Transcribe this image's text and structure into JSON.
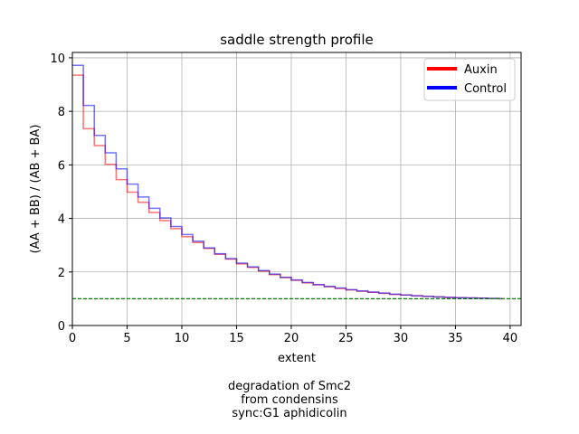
{
  "chart_data": {
    "type": "line",
    "drawstyle": "steps-post",
    "title": "saddle strength profile",
    "xlabel": "extent",
    "ylabel": "(AA + BB) / (AB + BA)",
    "xlim": [
      0,
      41
    ],
    "ylim": [
      0,
      10.2
    ],
    "xticks": [
      0,
      5,
      10,
      15,
      20,
      25,
      30,
      35,
      40
    ],
    "yticks": [
      0,
      2,
      4,
      6,
      8,
      10
    ],
    "grid": true,
    "legend_position": "top-right",
    "x": [
      0,
      1,
      2,
      3,
      4,
      5,
      6,
      7,
      8,
      9,
      10,
      11,
      12,
      13,
      14,
      15,
      16,
      17,
      18,
      19,
      20,
      21,
      22,
      23,
      24,
      25,
      26,
      27,
      28,
      29,
      30,
      31,
      32,
      33,
      34,
      35,
      36,
      37,
      38,
      39
    ],
    "series": [
      {
        "name": "Auxin",
        "color": "#ff0000",
        "values": [
          9.35,
          7.35,
          6.72,
          6.02,
          5.45,
          4.98,
          4.6,
          4.22,
          3.92,
          3.62,
          3.32,
          3.1,
          2.88,
          2.66,
          2.48,
          2.3,
          2.17,
          2.03,
          1.9,
          1.79,
          1.69,
          1.59,
          1.52,
          1.45,
          1.38,
          1.33,
          1.28,
          1.24,
          1.2,
          1.16,
          1.14,
          1.11,
          1.09,
          1.07,
          1.05,
          1.04,
          1.03,
          1.02,
          1.01,
          1.0
        ]
      },
      {
        "name": "Control",
        "color": "#0000ff",
        "values": [
          9.72,
          8.22,
          7.1,
          6.45,
          5.85,
          5.28,
          4.8,
          4.38,
          4.02,
          3.7,
          3.4,
          3.15,
          2.9,
          2.68,
          2.5,
          2.33,
          2.19,
          2.05,
          1.92,
          1.8,
          1.7,
          1.61,
          1.53,
          1.46,
          1.4,
          1.34,
          1.29,
          1.25,
          1.21,
          1.17,
          1.14,
          1.11,
          1.09,
          1.07,
          1.05,
          1.04,
          1.03,
          1.02,
          1.01,
          1.0
        ]
      }
    ],
    "reference_line": {
      "y": 1.0,
      "style": "dashed",
      "color": "#008000"
    },
    "caption_lines": [
      "degradation of Smc2",
      "from condensins",
      "sync:G1 aphidicolin"
    ]
  }
}
